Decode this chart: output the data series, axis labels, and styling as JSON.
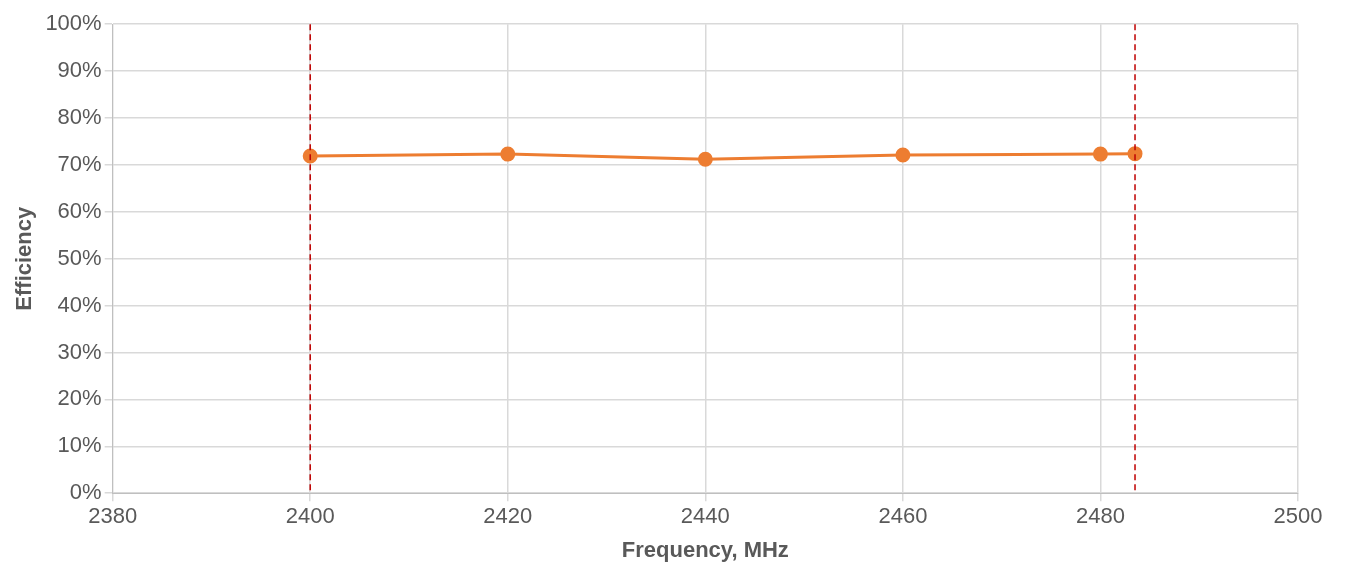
{
  "chart_data": {
    "type": "line",
    "xlabel": "Frequency, MHz",
    "ylabel": "Efficiency",
    "x": [
      2400,
      2420,
      2440,
      2460,
      2480,
      2483.5
    ],
    "series": [
      {
        "color": "#ed7d31",
        "values": [
          71.9,
          72.3,
          71.2,
          72.1,
          72.3,
          72.4
        ]
      }
    ],
    "xlim": [
      2380,
      2500
    ],
    "xticks": [
      2380,
      2400,
      2420,
      2440,
      2460,
      2480,
      2500
    ],
    "ylim": [
      0,
      100
    ],
    "yticks": [
      {
        "value": 0,
        "label": "0%"
      },
      {
        "value": 10,
        "label": "10%"
      },
      {
        "value": 20,
        "label": "20%"
      },
      {
        "value": 30,
        "label": "30%"
      },
      {
        "value": 40,
        "label": "40%"
      },
      {
        "value": 50,
        "label": "50%"
      },
      {
        "value": 60,
        "label": "60%"
      },
      {
        "value": 70,
        "label": "70%"
      },
      {
        "value": 80,
        "label": "80%"
      },
      {
        "value": 90,
        "label": "90%"
      },
      {
        "value": 100,
        "label": "100%"
      }
    ],
    "ref_lines": [
      {
        "axis": "x",
        "value": 2400,
        "color": "#c00000",
        "line_style": "dashed"
      },
      {
        "axis": "x",
        "value": 2483.5,
        "color": "#c00000",
        "line_style": "dashed"
      }
    ],
    "grid": true,
    "marker": "circle",
    "line_style": "solid",
    "legend": false
  }
}
